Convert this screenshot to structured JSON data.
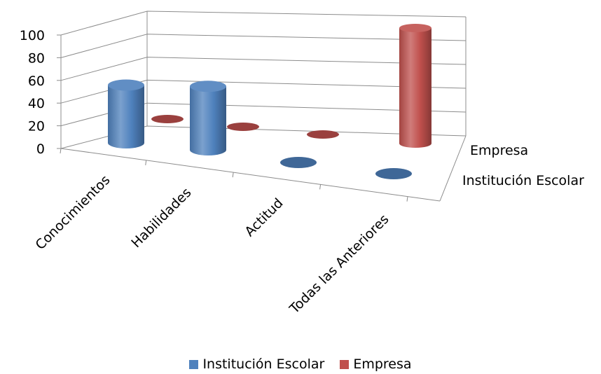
{
  "chart_data": {
    "type": "bar",
    "subtype": "3d-cylinder",
    "categories": [
      "Conocimientos",
      "Habilidades",
      "Actitud",
      "Todas las Anteriores"
    ],
    "series": [
      {
        "name": "Institución Escolar",
        "values": [
          50,
          55,
          0,
          0
        ],
        "color": "#4f81bd"
      },
      {
        "name": "Empresa",
        "values": [
          0,
          0,
          0,
          100
        ],
        "color": "#c0504d"
      }
    ],
    "y_ticks": [
      "0",
      "20",
      "40",
      "60",
      "80",
      "100"
    ],
    "ylim": [
      0,
      100
    ],
    "series_axis_labels": [
      "Empresa",
      "Institución Escolar"
    ],
    "grid": true,
    "legend_position": "bottom"
  }
}
